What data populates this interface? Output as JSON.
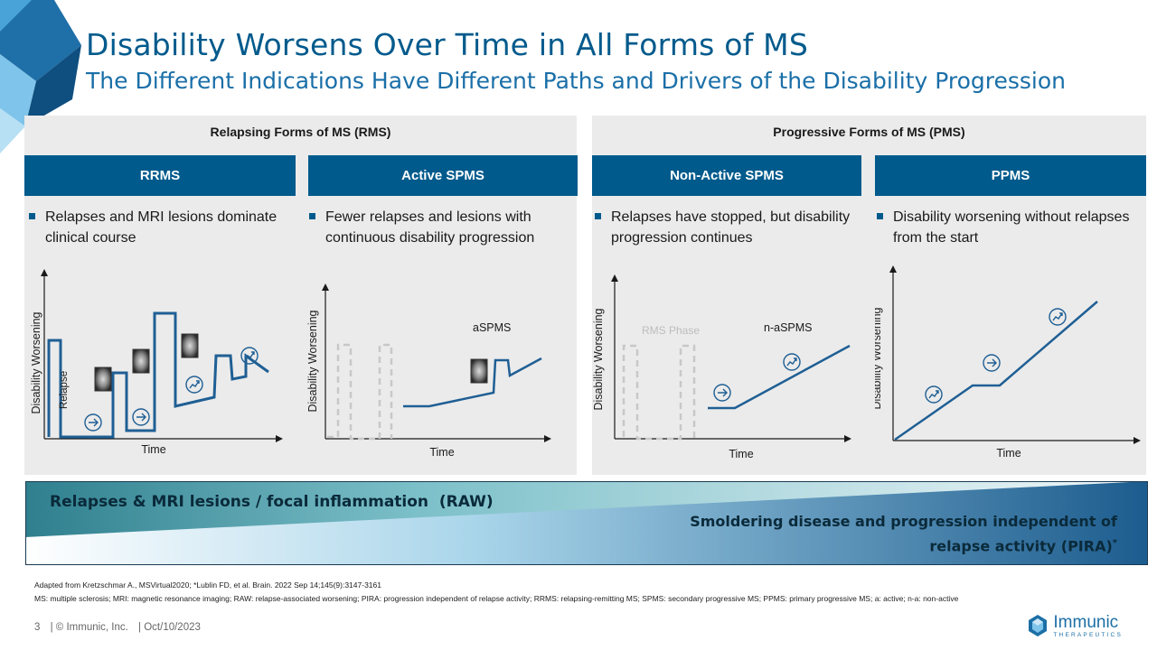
{
  "title": "Disability Worsens Over Time in All Forms of MS",
  "subtitle": "The Different Indications Have Different Paths and Drivers of the Disability Progression",
  "groups": {
    "rms": "Relapsing Forms of MS (RMS)",
    "pms": "Progressive Forms of MS (PMS)"
  },
  "indications": [
    {
      "label": "RRMS",
      "bullet": "Relapses and MRI lesions dominate clinical course"
    },
    {
      "label": "Active SPMS",
      "bullet": "Fewer relapses and lesions with continuous disability progression"
    },
    {
      "label": "Non-Active SPMS",
      "bullet": "Relapses have stopped, but disability progression continues"
    },
    {
      "label": "PPMS",
      "bullet": "Disability worsening without relapses from the start"
    }
  ],
  "charts": {
    "y_axis": "Disability Worsening",
    "x_axis": "Time",
    "relapse_label": "Relapse",
    "aspms_label": "aSPMS",
    "rms_phase_label": "RMS Phase",
    "naspms_label": "n-aSPMS"
  },
  "band": {
    "raw": "Relapses & MRI lesions / focal inflammation  (RAW)",
    "pira": "Smoldering disease and progression independent of relapse activity (PIRA)",
    "pira_sup": "*"
  },
  "references": {
    "line1": "Adapted from Kretzschmar A., MSVirtual2020; *Lublin FD, et al. Brain. 2022 Sep 14;145(9):3147-3161",
    "line2": "MS: multiple sclerosis; MRI: magnetic resonance imaging; RAW: relapse-associated worsening; PIRA: progression independent of relapse activity; RRMS: relapsing-remitting MS; SPMS: secondary progressive MS; PPMS: primary progressive MS; a: active; n-a: non-active"
  },
  "footer": {
    "page": "3",
    "company": "| © Immunic, Inc.",
    "date": "| Oct/10/2023"
  },
  "logo": {
    "name": "Immunic",
    "tagline": "THERAPEUTICS"
  },
  "colors": {
    "brand": "#005a8c",
    "panel": "#ebebeb"
  }
}
